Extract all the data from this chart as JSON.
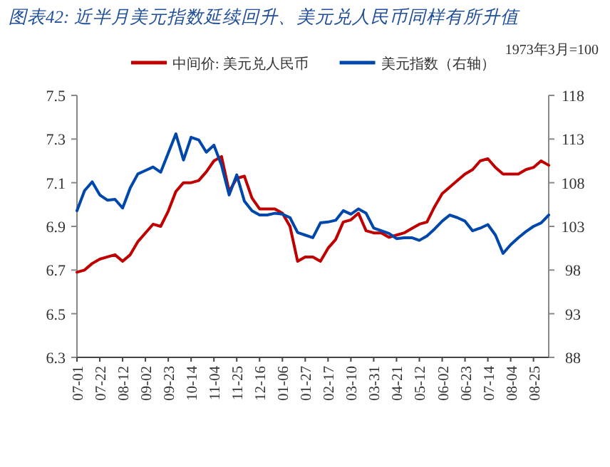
{
  "chart_data": {
    "type": "line",
    "title": "图表42: 近半月美元指数延续回升、美元兑人民币同样有所升值",
    "y2label": "1973年3月=100",
    "legend": "top",
    "grid": false,
    "marker": "none",
    "line_style": "solid",
    "categories": [
      "07-01",
      null,
      null,
      "07-22",
      null,
      null,
      "08-12",
      null,
      null,
      "09-02",
      null,
      null,
      "09-23",
      null,
      null,
      "10-14",
      null,
      null,
      "11-04",
      null,
      null,
      "11-25",
      null,
      null,
      "12-16",
      null,
      null,
      "01-06",
      null,
      null,
      "01-27",
      null,
      null,
      "02-17",
      null,
      null,
      "03-10",
      null,
      null,
      "03-31",
      null,
      null,
      "04-21",
      null,
      null,
      "05-12",
      null,
      null,
      "06-02",
      null,
      null,
      "06-23",
      null,
      null,
      "07-14",
      null,
      null,
      "08-04",
      null,
      null,
      "08-25",
      null,
      null
    ],
    "ylim": [
      6.3,
      7.5
    ],
    "yticks": [
      6.3,
      6.5,
      6.7,
      6.9,
      7.1,
      7.3,
      7.5
    ],
    "y2lim": [
      88,
      118
    ],
    "y2ticks": [
      88,
      93,
      98,
      103,
      108,
      113,
      118
    ],
    "series": [
      {
        "name": "中间价: 美元兑人民币",
        "color": "#c00000",
        "values": [
          6.69,
          6.7,
          6.73,
          6.75,
          6.76,
          6.77,
          6.74,
          6.77,
          6.83,
          6.87,
          6.91,
          6.9,
          6.97,
          7.06,
          7.1,
          7.1,
          7.11,
          7.15,
          7.2,
          7.22,
          7.06,
          7.12,
          7.13,
          7.03,
          6.98,
          6.98,
          6.98,
          6.96,
          6.9,
          6.74,
          6.76,
          6.76,
          6.74,
          6.8,
          6.84,
          6.92,
          6.93,
          6.96,
          6.88,
          6.87,
          6.87,
          6.85,
          6.86,
          6.87,
          6.89,
          6.91,
          6.92,
          6.99,
          7.05,
          7.08,
          7.11,
          7.14,
          7.16,
          7.2,
          7.21,
          7.17,
          7.14,
          7.14,
          7.14,
          7.16,
          7.17,
          7.2,
          7.18
        ]
      },
      {
        "name": "美元指数（右轴）",
        "color": "#0047ab",
        "axis": "y2",
        "values": [
          104.8,
          107.1,
          108.1,
          106.6,
          106.0,
          106.1,
          105.1,
          107.4,
          109.0,
          109.4,
          109.8,
          109.2,
          111.4,
          113.6,
          110.6,
          113.2,
          112.9,
          111.5,
          112.3,
          110.0,
          106.6,
          108.9,
          105.9,
          104.8,
          104.3,
          104.3,
          104.5,
          104.4,
          104.0,
          102.3,
          102.0,
          101.7,
          103.4,
          103.5,
          103.7,
          104.8,
          104.4,
          105.0,
          104.5,
          102.8,
          102.5,
          102.2,
          101.6,
          101.7,
          101.7,
          101.4,
          101.9,
          102.7,
          103.6,
          104.3,
          104.0,
          103.6,
          102.5,
          102.8,
          103.2,
          102.0,
          99.9,
          100.9,
          101.7,
          102.4,
          103.0,
          103.4,
          104.3
        ]
      }
    ]
  }
}
